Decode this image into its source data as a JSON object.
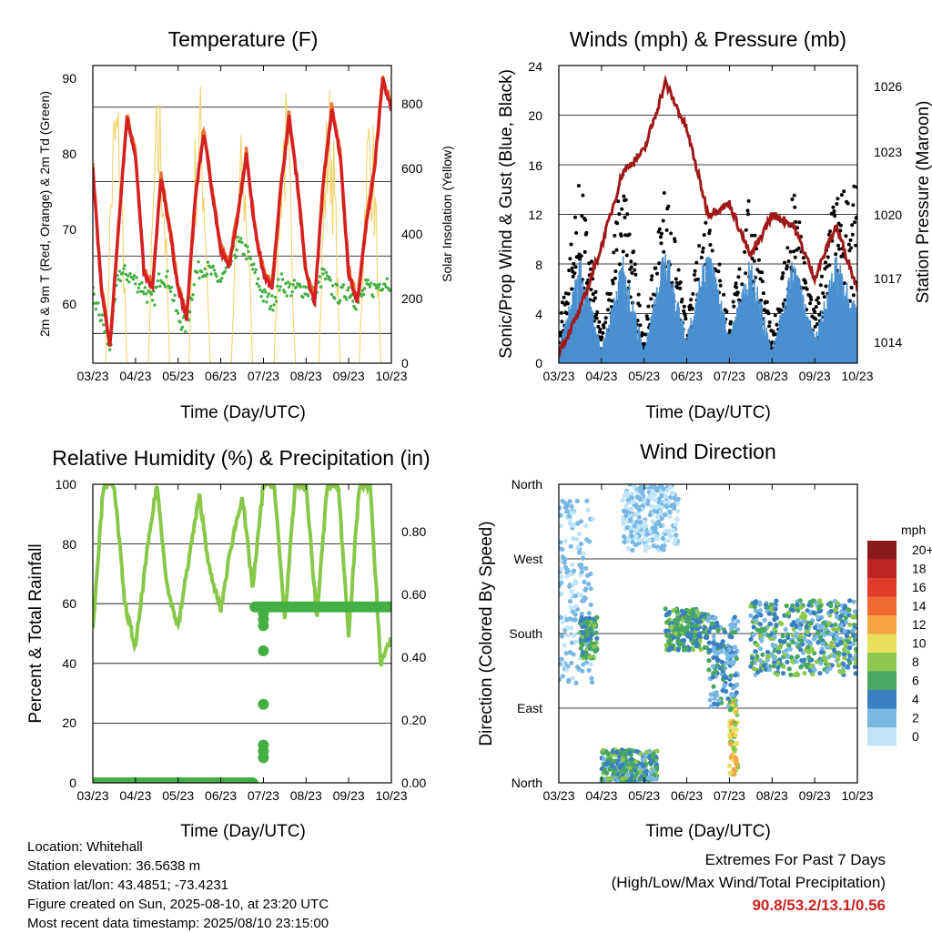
{
  "colors": {
    "temp_2m": "#d42020",
    "temp_9m": "#f07030",
    "dewpoint": "#44b044",
    "solar": "#f0d060",
    "wind_sonic": "#000000",
    "gust_prop": "#4a90d0",
    "pressure": "#a01818",
    "rh": "#88c848",
    "precip": "#44b044",
    "extremes_text": "#cc2222"
  },
  "time_ticks": [
    "03/23",
    "04/23",
    "05/23",
    "06/23",
    "07/23",
    "08/23",
    "09/23",
    "10/23"
  ],
  "panels": {
    "temperature": {
      "title": "Temperature (F)",
      "xlabel": "Time (Day/UTC)",
      "ylabel_left": "2m & 9m T (Red, Orange) & 2m Td (Green)",
      "ylabel_right": "Solar Insolation (Yellow)",
      "yticks_left": [
        "90",
        "80",
        "70",
        "60"
      ],
      "yticks_right": [
        "800",
        "600",
        "400",
        "200",
        "0"
      ]
    },
    "winds": {
      "title": "Winds (mph) & Pressure (mb)",
      "xlabel": "Time (Day/UTC)",
      "ylabel_left": "Sonic/Prop Wind & Gust (Blue, Black)",
      "ylabel_right": "Station Pressure (Maroon)",
      "yticks_left": [
        "24",
        "20",
        "16",
        "12",
        "8",
        "4",
        "0"
      ],
      "yticks_right": [
        "1026",
        "1023",
        "1020",
        "1017",
        "1014"
      ]
    },
    "humidity": {
      "title": "Relative Humidity (%) & Precipitation (in)",
      "xlabel": "Time (Day/UTC)",
      "ylabel_left": "Percent & Total Rainfall",
      "yticks_left": [
        "100",
        "80",
        "60",
        "40",
        "20",
        "0"
      ],
      "yticks_right": [
        "0.80",
        "0.60",
        "0.40",
        "0.20",
        "0.00"
      ]
    },
    "direction": {
      "title": "Wind Direction",
      "xlabel": "Time (Day/UTC)",
      "ylabel_left": "Direction (Colored By Speed)",
      "yticks_left": [
        "North",
        "West",
        "South",
        "East",
        "North"
      ],
      "legend_title": "mph",
      "legend_labels": [
        "20+",
        "18",
        "16",
        "14",
        "12",
        "10",
        "8",
        "6",
        "4",
        "2",
        "0"
      ],
      "legend_colors": [
        "#8b1a1a",
        "#bf2424",
        "#e03c2c",
        "#f06a30",
        "#f5a545",
        "#e8df5a",
        "#8cc850",
        "#48a860",
        "#3a80c0",
        "#7ab8e4",
        "#c0e4f8"
      ]
    }
  },
  "info": {
    "location": "Location: Whitehall",
    "elevation": "Station elevation: 36.5638 m",
    "latlon": "Station lat/lon: 43.4851; -73.4231",
    "created": "Figure created on Sun, 2025-08-10, at 23:20 UTC",
    "recent": "Most recent data timestamp: 2025/08/10 23:15:00"
  },
  "extremes": {
    "title": "Extremes For Past 7 Days",
    "subtitle": "(High/Low/Max Wind/Total Precipitation)",
    "values": "90.8/53.2/13.1/0.56"
  },
  "chart_data": [
    {
      "type": "line",
      "title": "Temperature (F)",
      "xlabel": "Time (Day/UTC)",
      "ylabel": "2m & 9m T (Red, Orange) & 2m Td (Green)",
      "y2label": "Solar Insolation (Yellow)",
      "xlim": [
        0,
        7
      ],
      "ylim": [
        52,
        92
      ],
      "y2lim": [
        0,
        900
      ],
      "x": [
        0,
        0.2,
        0.4,
        0.6,
        0.8,
        1.0,
        1.2,
        1.4,
        1.6,
        1.8,
        2.0,
        2.2,
        2.4,
        2.6,
        2.8,
        3.0,
        3.2,
        3.4,
        3.6,
        3.8,
        4.0,
        4.2,
        4.4,
        4.6,
        4.8,
        5.0,
        5.2,
        5.4,
        5.6,
        5.8,
        6.0,
        6.2,
        6.4,
        6.6,
        6.8,
        7.0
      ],
      "series": [
        {
          "name": "2m T",
          "values": [
            78,
            62,
            54,
            70,
            85,
            80,
            64,
            62,
            77,
            70,
            62,
            58,
            74,
            83,
            75,
            67,
            65,
            72,
            80,
            70,
            64,
            62,
            75,
            85,
            76,
            64,
            60,
            76,
            86,
            80,
            64,
            60,
            70,
            78,
            90,
            86
          ]
        },
        {
          "name": "2m Td",
          "values": [
            61,
            58,
            54,
            64,
            64,
            63,
            62,
            60,
            64,
            63,
            58,
            57,
            64,
            65,
            64,
            63,
            65,
            68,
            67,
            64,
            61,
            60,
            63,
            62,
            62,
            62,
            61,
            64,
            62,
            61,
            62,
            60,
            62,
            62,
            63,
            63
          ]
        }
      ],
      "solar_peaks": [
        {
          "x": 0.55,
          "value": 880
        },
        {
          "x": 1.55,
          "value": 860
        },
        {
          "x": 2.5,
          "value": 880
        },
        {
          "x": 3.5,
          "value": 720
        },
        {
          "x": 4.5,
          "value": 860
        },
        {
          "x": 5.55,
          "value": 870
        },
        {
          "x": 6.5,
          "value": 840
        }
      ]
    },
    {
      "type": "scatter",
      "title": "Winds (mph) & Pressure (mb)",
      "xlabel": "Time (Day/UTC)",
      "ylabel": "Sonic/Prop Wind & Gust (Blue, Black)",
      "y2label": "Station Pressure (Maroon)",
      "xlim": [
        0,
        7
      ],
      "ylim": [
        0,
        24
      ],
      "y2lim": [
        1013,
        1027
      ],
      "x": [
        0,
        0.5,
        1.0,
        1.5,
        2.0,
        2.5,
        3.0,
        3.5,
        4.0,
        4.5,
        5.0,
        5.5,
        6.0,
        6.5,
        7.0
      ],
      "series": [
        {
          "name": "Sonic/Prop Wind",
          "values": [
            1,
            8,
            1,
            8,
            1,
            9,
            2,
            9,
            2,
            8,
            1,
            8,
            2,
            8,
            4
          ]
        },
        {
          "name": "Gust",
          "values": [
            3,
            14,
            2,
            15,
            2,
            14,
            3,
            13,
            3,
            13,
            2,
            13,
            4,
            13,
            13
          ]
        },
        {
          "name": "Station Pressure",
          "values": [
            1013.5,
            1015.5,
            1018.5,
            1022,
            1023,
            1026.2,
            1024,
            1020,
            1020.5,
            1018,
            1020,
            1019.5,
            1017,
            1019.5,
            1016.5
          ]
        }
      ]
    },
    {
      "type": "line",
      "title": "Relative Humidity (%) & Precipitation (in)",
      "xlabel": "Time (Day/UTC)",
      "ylabel": "Percent & Total Rainfall",
      "xlim": [
        0,
        7
      ],
      "ylim": [
        0,
        100
      ],
      "y2lim": [
        0,
        0.95
      ],
      "x": [
        0,
        0.25,
        0.5,
        0.75,
        1.0,
        1.25,
        1.5,
        1.75,
        2.0,
        2.25,
        2.5,
        2.75,
        3.0,
        3.25,
        3.5,
        3.75,
        4.0,
        4.25,
        4.5,
        4.75,
        5.0,
        5.25,
        5.5,
        5.75,
        6.0,
        6.25,
        6.5,
        6.75,
        7.0
      ],
      "series": [
        {
          "name": "Relative Humidity",
          "values": [
            52,
            100,
            100,
            60,
            45,
            75,
            100,
            65,
            52,
            75,
            96,
            70,
            58,
            80,
            96,
            65,
            100,
            100,
            55,
            100,
            100,
            55,
            100,
            100,
            50,
            100,
            100,
            40,
            48
          ]
        },
        {
          "name": "Total Rainfall",
          "values": [
            0,
            0,
            0,
            0,
            0,
            0,
            0,
            0,
            0,
            0,
            0,
            0,
            0,
            0,
            0,
            0,
            0.56,
            0.56,
            0.56,
            0.56,
            0.56,
            0.56,
            0.56,
            0.56,
            0.56,
            0.56,
            0.56,
            0.56,
            0.56
          ]
        }
      ]
    },
    {
      "type": "scatter",
      "title": "Wind Direction",
      "xlabel": "Time (Day/UTC)",
      "ylabel": "Direction (Colored By Speed)",
      "xlim": [
        0,
        7
      ],
      "ylim": [
        0,
        360
      ],
      "clusters": [
        {
          "x": [
            0,
            0.8
          ],
          "direction": [
            120,
            340
          ],
          "speed": [
            0,
            3
          ]
        },
        {
          "x": [
            0.5,
            0.9
          ],
          "direction": [
            150,
            200
          ],
          "speed": [
            3,
            8
          ]
        },
        {
          "x": [
            1.0,
            2.3
          ],
          "direction": [
            0,
            40
          ],
          "speed": [
            2,
            8
          ]
        },
        {
          "x": [
            1.5,
            2.8
          ],
          "direction": [
            280,
            360
          ],
          "speed": [
            0,
            2
          ]
        },
        {
          "x": [
            2.5,
            3.5
          ],
          "direction": [
            160,
            210
          ],
          "speed": [
            3,
            8
          ]
        },
        {
          "x": [
            3.5,
            4.2
          ],
          "direction": [
            90,
            200
          ],
          "speed": [
            1,
            6
          ]
        },
        {
          "x": [
            4.0,
            4.2
          ],
          "direction": [
            10,
            100
          ],
          "speed": [
            6,
            13
          ]
        },
        {
          "x": [
            4.5,
            7.0
          ],
          "direction": [
            130,
            220
          ],
          "speed": [
            1,
            9
          ]
        }
      ]
    }
  ]
}
